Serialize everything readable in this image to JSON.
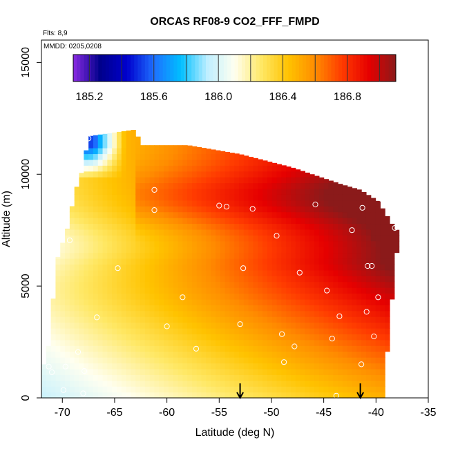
{
  "chart_data": {
    "type": "heatmap",
    "title": "ORCAS RF08-9 CO2_FFF_FMPD",
    "annotations": {
      "flights": "Flts: 8,9",
      "dates": "MMDD: 0205,0208"
    },
    "xlabel": "Latitude (deg N)",
    "ylabel": "Altitude (m)",
    "xlim": [
      -72,
      -35
    ],
    "ylim": [
      0,
      16000
    ],
    "x_ticks": [
      -70,
      -65,
      -60,
      -55,
      -50,
      -45,
      -40,
      -35
    ],
    "x_tick_labels": [
      "-70",
      "-65",
      "-60",
      "-55",
      "-50",
      "-45",
      "-40",
      "-35"
    ],
    "y_ticks": [
      0,
      5000,
      10000,
      15000
    ],
    "y_tick_labels": [
      "0",
      "5000",
      "10000",
      "15000"
    ],
    "colorbar": {
      "range": [
        185.1,
        187.1
      ],
      "ticks": [
        185.2,
        185.6,
        186.0,
        186.4,
        186.8
      ],
      "tick_labels": [
        "185.2",
        "185.6",
        "186.0",
        "186.4",
        "186.8"
      ],
      "colors": [
        "#8a2be2",
        "#00008b",
        "#0000cd",
        "#1e6fff",
        "#00bfff",
        "#bfefff",
        "#fffff0",
        "#ffe866",
        "#ffc300",
        "#ff8c00",
        "#ff3b00",
        "#e60000",
        "#8b1a1a"
      ]
    },
    "sample_points": [
      {
        "lat": -67.5,
        "alt": 11600
      },
      {
        "lat": -61.2,
        "alt": 9300
      },
      {
        "lat": -61.2,
        "alt": 8400
      },
      {
        "lat": -55.0,
        "alt": 8600
      },
      {
        "lat": -54.3,
        "alt": 8550
      },
      {
        "lat": -51.8,
        "alt": 8450
      },
      {
        "lat": -45.8,
        "alt": 8650
      },
      {
        "lat": -41.3,
        "alt": 8500
      },
      {
        "lat": -39.5,
        "alt": 8900
      },
      {
        "lat": -42.3,
        "alt": 7500
      },
      {
        "lat": -49.5,
        "alt": 7250
      },
      {
        "lat": -69.3,
        "alt": 7050
      },
      {
        "lat": -38.2,
        "alt": 7600
      },
      {
        "lat": -64.7,
        "alt": 5800
      },
      {
        "lat": -52.7,
        "alt": 5800
      },
      {
        "lat": -47.3,
        "alt": 5600
      },
      {
        "lat": -40.8,
        "alt": 5900
      },
      {
        "lat": -40.4,
        "alt": 5900
      },
      {
        "lat": -58.5,
        "alt": 4500
      },
      {
        "lat": -44.7,
        "alt": 4800
      },
      {
        "lat": -39.8,
        "alt": 4500
      },
      {
        "lat": -66.7,
        "alt": 3600
      },
      {
        "lat": -60.0,
        "alt": 3200
      },
      {
        "lat": -53.0,
        "alt": 3300
      },
      {
        "lat": -43.5,
        "alt": 3650
      },
      {
        "lat": -40.9,
        "alt": 3850
      },
      {
        "lat": -49.0,
        "alt": 2850
      },
      {
        "lat": -44.2,
        "alt": 2650
      },
      {
        "lat": -40.2,
        "alt": 2750
      },
      {
        "lat": -57.2,
        "alt": 2200
      },
      {
        "lat": -47.8,
        "alt": 2300
      },
      {
        "lat": -68.5,
        "alt": 2050
      },
      {
        "lat": -48.8,
        "alt": 1600
      },
      {
        "lat": -41.4,
        "alt": 1500
      },
      {
        "lat": -71.3,
        "alt": 1400
      },
      {
        "lat": -69.7,
        "alt": 1400
      },
      {
        "lat": -67.9,
        "alt": 1200
      },
      {
        "lat": -71.0,
        "alt": 1150
      },
      {
        "lat": -69.9,
        "alt": 350
      },
      {
        "lat": -68.0,
        "alt": 200
      },
      {
        "lat": -43.8,
        "alt": 100
      }
    ],
    "arrows": [
      {
        "lat": -53.0
      },
      {
        "lat": -41.5
      }
    ]
  }
}
